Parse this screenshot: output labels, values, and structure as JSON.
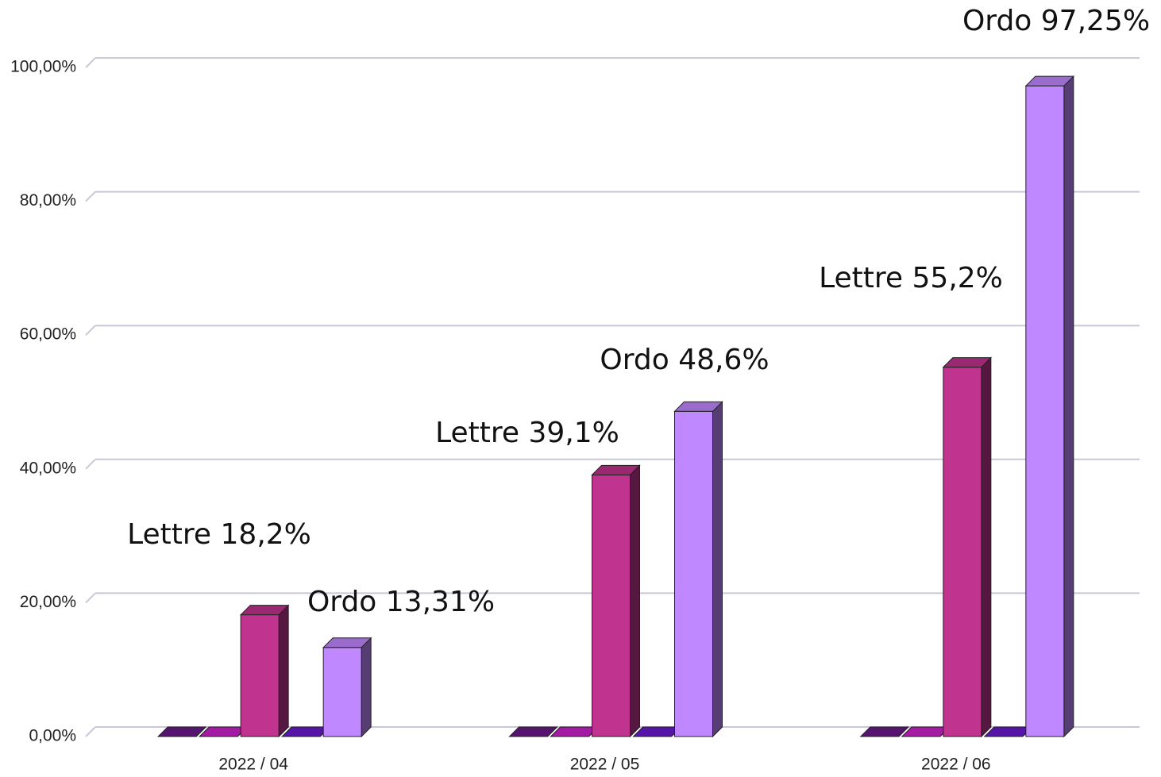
{
  "chart_data": {
    "type": "bar3d",
    "categories": [
      "2022 / 04",
      "2022 / 05",
      "2022 / 06"
    ],
    "series": [
      {
        "color": "#6a1a8a",
        "values": [
          0,
          0,
          0
        ]
      },
      {
        "color": "#cc22cc",
        "values": [
          0,
          0,
          0
        ]
      },
      {
        "color": "#c0338f",
        "values": [
          18.2,
          39.1,
          55.2
        ],
        "value_labels": [
          "Lettre 18,2%",
          "Lettre 39,1%",
          "Lettre 55,2%"
        ]
      },
      {
        "color": "#6a1ad0",
        "values": [
          0,
          0,
          0
        ]
      },
      {
        "color": "#c088ff",
        "values": [
          13.31,
          48.6,
          97.25
        ],
        "value_labels": [
          "Ordo 13,31%",
          "Ordo 48,6%",
          "Ordo 97,25%"
        ]
      }
    ],
    "ylim": [
      0,
      100
    ],
    "yticks": [
      {
        "value": 0,
        "label": "0,00%"
      },
      {
        "value": 20,
        "label": "20,00%"
      },
      {
        "value": 40,
        "label": "40,00%"
      },
      {
        "value": 60,
        "label": "60,00%"
      },
      {
        "value": 80,
        "label": "80,00%"
      },
      {
        "value": 100,
        "label": "100,00%"
      }
    ],
    "grid": true
  }
}
